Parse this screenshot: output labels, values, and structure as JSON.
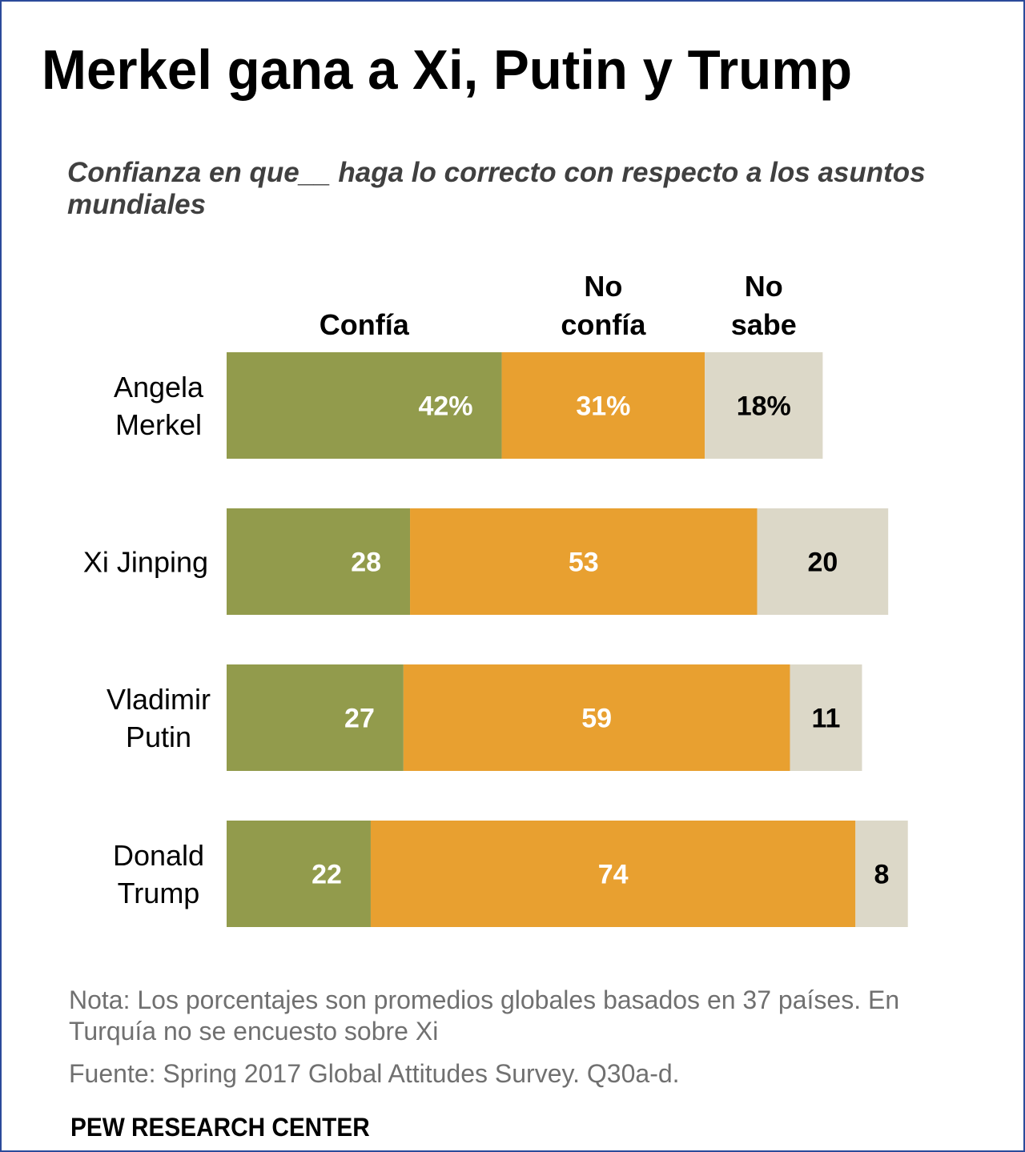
{
  "header": {
    "title": "Merkel gana a Xi, Putin y Trump",
    "subtitle": "Confianza en que__ haga lo correcto con respecto a los asuntos mundiales"
  },
  "footer": {
    "note": "Nota: Los porcentajes son promedios globales basados en 37 países.  En Turquía no se encuesto sobre Xi",
    "source": "Fuente: Spring 2017 Global Attitudes Survey. Q30a-d.",
    "brand": "PEW RESEARCH CENTER"
  },
  "chart_data": {
    "type": "bar",
    "orientation": "horizontal",
    "stacked": true,
    "categories": [
      [
        "Angela",
        "Merkel"
      ],
      [
        "Xi Jinping"
      ],
      [
        "Vladimir",
        "Putin"
      ],
      [
        "Donald",
        "Trump"
      ]
    ],
    "series": [
      {
        "name": [
          "Confía"
        ],
        "values": [
          42,
          28,
          27,
          22
        ],
        "labels": [
          "42%",
          "28",
          "27",
          "22"
        ],
        "color": "#929b4c",
        "label_color": "#ffffff"
      },
      {
        "name": [
          "No",
          "confía"
        ],
        "values": [
          31,
          53,
          59,
          74
        ],
        "labels": [
          "31%",
          "53",
          "59",
          "74"
        ],
        "color": "#e8a030",
        "label_color": "#ffffff"
      },
      {
        "name": [
          "No",
          "sabe"
        ],
        "values": [
          18,
          20,
          11,
          8
        ],
        "labels": [
          "18%",
          "20",
          "11",
          "8"
        ],
        "color": "#dcd8c8",
        "label_color": "#000000"
      }
    ],
    "xlim": [
      0,
      100
    ],
    "grid": false,
    "legend": "top, as column headers"
  }
}
